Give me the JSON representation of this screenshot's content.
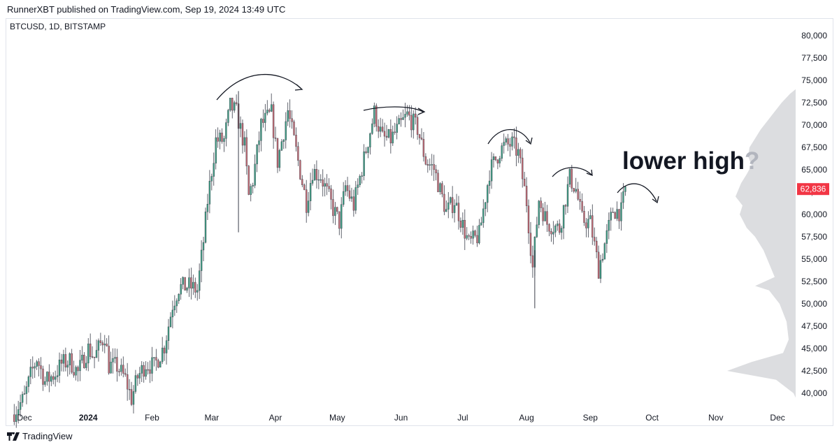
{
  "header": {
    "published_text": "RunnerXBT published on TradingView.com, Sep 19, 2024 13:49 UTC"
  },
  "chart": {
    "symbol_line": "BTCUSD, 1D, BITSTAMP",
    "annotation": "lower high",
    "annotation_mark": "?",
    "price_label": "62,836",
    "colors": {
      "up": "#3f9e84",
      "down": "#c26a73",
      "neutral": "#3a3e4a",
      "price_tag": "#f23645",
      "volume_profile": "#dcdde0"
    }
  },
  "chart_data": {
    "type": "candlestick",
    "symbol": "BTCUSD",
    "interval": "1D",
    "exchange": "BITSTAMP",
    "last_price": 62836,
    "ylim": [
      38000,
      82000
    ],
    "y_ticks": [
      40000,
      42500,
      45000,
      47500,
      50000,
      52500,
      55000,
      57500,
      60000,
      62500,
      65000,
      67500,
      70000,
      72500,
      75000,
      77500,
      80000
    ],
    "y_tick_labels": [
      "40,000",
      "42,500",
      "45,000",
      "47,500",
      "50,000",
      "52,500",
      "55,000",
      "57,500",
      "60,000",
      "62,500",
      "65,000",
      "67,500",
      "70,000",
      "72,500",
      "75,000",
      "77,500",
      "80,000"
    ],
    "x_ticks": [
      {
        "label": "Dec",
        "date": "2023-12-01",
        "bold": false
      },
      {
        "label": "2024",
        "date": "2024-01-01",
        "bold": true
      },
      {
        "label": "Feb",
        "date": "2024-02-01",
        "bold": false
      },
      {
        "label": "Mar",
        "date": "2024-03-01",
        "bold": false
      },
      {
        "label": "Apr",
        "date": "2024-04-01",
        "bold": false
      },
      {
        "label": "May",
        "date": "2024-05-01",
        "bold": false
      },
      {
        "label": "Jun",
        "date": "2024-06-01",
        "bold": false
      },
      {
        "label": "Jul",
        "date": "2024-07-01",
        "bold": false
      },
      {
        "label": "Aug",
        "date": "2024-08-01",
        "bold": false
      },
      {
        "label": "Sep",
        "date": "2024-09-01",
        "bold": false
      },
      {
        "label": "Oct",
        "date": "2024-10-01",
        "bold": false
      },
      {
        "label": "Nov",
        "date": "2024-11-01",
        "bold": false
      },
      {
        "label": "Dec",
        "date": "2024-12-01",
        "bold": false
      }
    ],
    "price_path": [
      [
        "2023-11-26",
        37600
      ],
      [
        "2023-12-02",
        39500
      ],
      [
        "2023-12-05",
        42000
      ],
      [
        "2023-12-08",
        43900
      ],
      [
        "2023-12-12",
        41300
      ],
      [
        "2023-12-17",
        42200
      ],
      [
        "2023-12-20",
        43300
      ],
      [
        "2023-12-24",
        43600
      ],
      [
        "2023-12-28",
        42300
      ],
      [
        "2024-01-02",
        45000
      ],
      [
        "2024-01-05",
        44000
      ],
      [
        "2024-01-10",
        46500
      ],
      [
        "2024-01-12",
        43100
      ],
      [
        "2024-01-16",
        43000
      ],
      [
        "2024-01-20",
        41600
      ],
      [
        "2024-01-23",
        39400
      ],
      [
        "2024-01-26",
        41800
      ],
      [
        "2024-01-30",
        43300
      ],
      [
        "2024-02-03",
        43000
      ],
      [
        "2024-02-08",
        45300
      ],
      [
        "2024-02-12",
        49900
      ],
      [
        "2024-02-15",
        51800
      ],
      [
        "2024-02-20",
        52000
      ],
      [
        "2024-02-24",
        51500
      ],
      [
        "2024-02-27",
        57000
      ],
      [
        "2024-02-29",
        61500
      ],
      [
        "2024-03-04",
        68300
      ],
      [
        "2024-03-08",
        68300
      ],
      [
        "2024-03-11",
        72100
      ],
      [
        "2024-03-14",
        71400
      ],
      [
        "2024-03-18",
        67600
      ],
      [
        "2024-03-20",
        62000
      ],
      [
        "2024-03-22",
        63800
      ],
      [
        "2024-03-26",
        70000
      ],
      [
        "2024-03-31",
        71300
      ],
      [
        "2024-04-03",
        65900
      ],
      [
        "2024-04-08",
        71600
      ],
      [
        "2024-04-12",
        67100
      ],
      [
        "2024-04-17",
        61300
      ],
      [
        "2024-04-20",
        64900
      ],
      [
        "2024-04-24",
        64300
      ],
      [
        "2024-04-30",
        60600
      ],
      [
        "2024-05-03",
        59100
      ],
      [
        "2024-05-06",
        63100
      ],
      [
        "2024-05-10",
        61000
      ],
      [
        "2024-05-15",
        66200
      ],
      [
        "2024-05-20",
        71400
      ],
      [
        "2024-05-24",
        68500
      ],
      [
        "2024-05-28",
        68400
      ],
      [
        "2024-06-05",
        71100
      ],
      [
        "2024-06-10",
        69600
      ],
      [
        "2024-06-14",
        66000
      ],
      [
        "2024-06-18",
        65100
      ],
      [
        "2024-06-24",
        60300
      ],
      [
        "2024-06-28",
        61500
      ],
      [
        "2024-07-05",
        56700
      ],
      [
        "2024-07-10",
        57700
      ],
      [
        "2024-07-15",
        64800
      ],
      [
        "2024-07-20",
        67100
      ],
      [
        "2024-07-22",
        67600
      ],
      [
        "2024-07-26",
        67900
      ],
      [
        "2024-07-29",
        66800
      ],
      [
        "2024-08-02",
        61400
      ],
      [
        "2024-08-05",
        54000
      ],
      [
        "2024-08-08",
        61700
      ],
      [
        "2024-08-12",
        59000
      ],
      [
        "2024-08-18",
        58400
      ],
      [
        "2024-08-23",
        64100
      ],
      [
        "2024-08-26",
        62800
      ],
      [
        "2024-08-29",
        59400
      ],
      [
        "2024-09-02",
        59100
      ],
      [
        "2024-09-06",
        53900
      ],
      [
        "2024-09-10",
        57600
      ],
      [
        "2024-09-13",
        60500
      ],
      [
        "2024-09-17",
        60300
      ],
      [
        "2024-09-19",
        62836
      ]
    ],
    "extreme_wicks": [
      [
        "2024-08-05",
        49500,
        56000
      ],
      [
        "2024-03-14",
        58000,
        73800
      ]
    ]
  }
}
